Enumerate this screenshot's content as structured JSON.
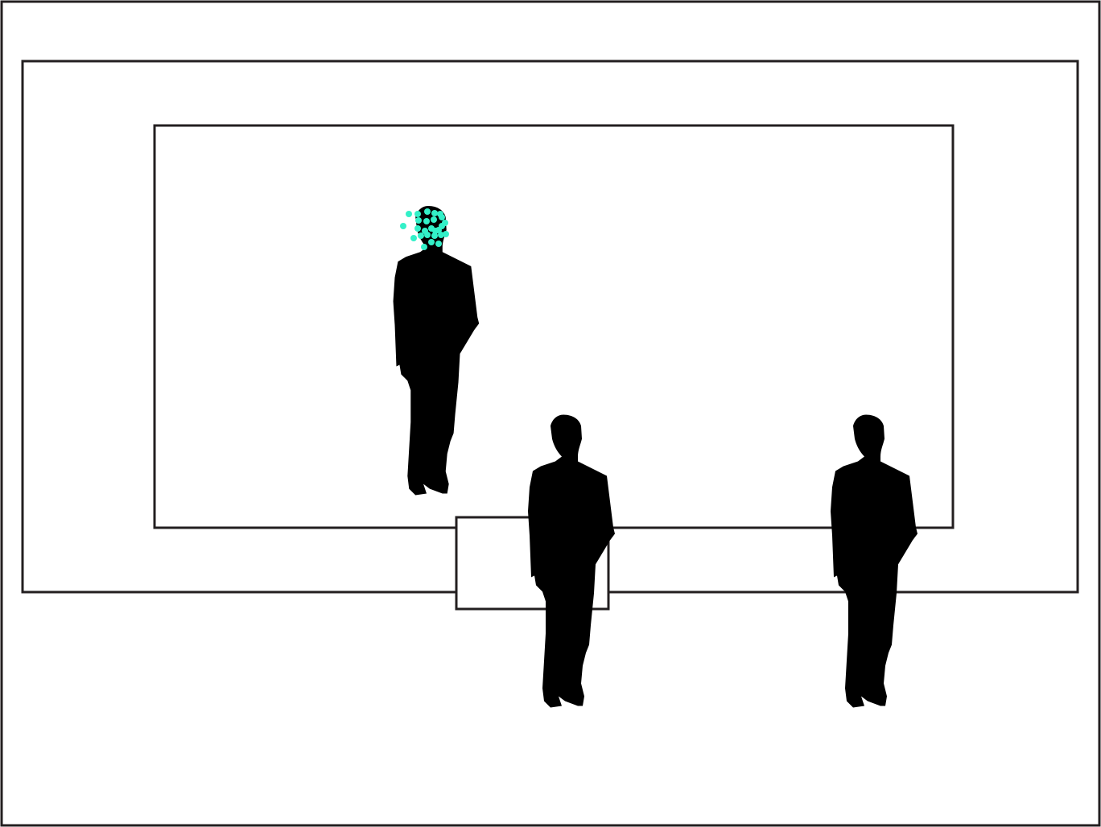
{
  "title": "",
  "colors": {
    "background": "#ffffff",
    "stroke": "#231f20",
    "silhouette": "#000000",
    "gaze_points": "#33f0c8"
  },
  "frames": [
    {
      "name": "outer-frame"
    },
    {
      "name": "middle-frame"
    },
    {
      "name": "inner-frame"
    },
    {
      "name": "small-box"
    }
  ],
  "figures": [
    {
      "name": "figure-back-left",
      "has_gaze_points": true
    },
    {
      "name": "figure-front-center",
      "has_gaze_points": false
    },
    {
      "name": "figure-front-right",
      "has_gaze_points": false
    }
  ],
  "gaze_points": {
    "count": 26,
    "target": "figure-back-left-head"
  }
}
